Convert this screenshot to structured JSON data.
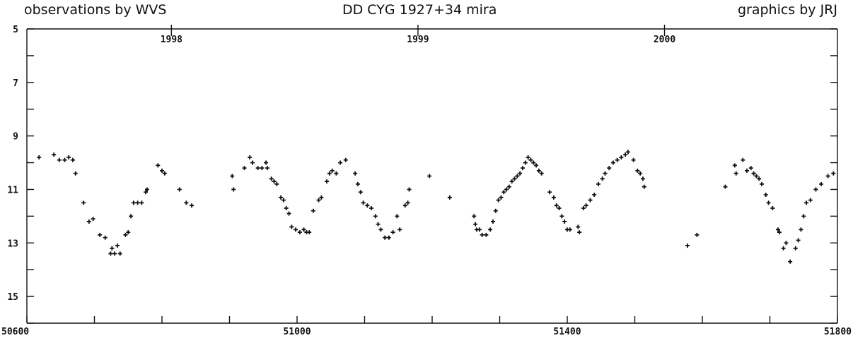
{
  "header": {
    "left": "observations by WVS",
    "center": "DD CYG  1927+34  mira",
    "right": "graphics by JRJ"
  },
  "chart_data": {
    "type": "scatter",
    "title": "DD CYG  1927+34  mira",
    "xlabel": "",
    "ylabel": "",
    "xlim": [
      50600,
      51800
    ],
    "ylim": [
      16,
      5
    ],
    "y_inverted": true,
    "x_ticks": [
      50600,
      50700,
      50800,
      50900,
      51000,
      51100,
      51200,
      51300,
      51400,
      51500,
      51600,
      51700,
      51800
    ],
    "x_tick_labels": [
      {
        "x": 50600,
        "label": "50600"
      },
      {
        "x": 51000,
        "label": "51000"
      },
      {
        "x": 51400,
        "label": "51400"
      },
      {
        "x": 51800,
        "label": "51800"
      }
    ],
    "y_ticks": [
      5,
      6,
      7,
      8,
      9,
      10,
      11,
      12,
      13,
      14,
      15,
      16
    ],
    "y_tick_labels": [
      {
        "y": 5,
        "label": "5"
      },
      {
        "y": 7,
        "label": "7"
      },
      {
        "y": 9,
        "label": "9"
      },
      {
        "y": 11,
        "label": "11"
      },
      {
        "y": 13,
        "label": "13"
      },
      {
        "y": 15,
        "label": "15"
      }
    ],
    "year_markers": [
      {
        "x": 50814,
        "label": "1998"
      },
      {
        "x": 51179,
        "label": "1999"
      },
      {
        "x": 51544,
        "label": "2000"
      }
    ],
    "marker": "+",
    "color": "#111111",
    "series": [
      {
        "points": [
          [
            50618,
            9.8
          ],
          [
            50640,
            9.7
          ],
          [
            50648,
            9.9
          ],
          [
            50656,
            9.9
          ],
          [
            50662,
            9.8
          ],
          [
            50668,
            9.9
          ],
          [
            50672,
            10.4
          ],
          [
            50684,
            11.5
          ],
          [
            50692,
            12.2
          ],
          [
            50698,
            12.1
          ],
          [
            50708,
            12.7
          ],
          [
            50716,
            12.8
          ],
          [
            50724,
            13.4
          ],
          [
            50726,
            13.2
          ],
          [
            50730,
            13.4
          ],
          [
            50734,
            13.1
          ],
          [
            50738,
            13.4
          ],
          [
            50746,
            12.7
          ],
          [
            50750,
            12.6
          ],
          [
            50754,
            12.0
          ],
          [
            50758,
            11.5
          ],
          [
            50764,
            11.5
          ],
          [
            50770,
            11.5
          ],
          [
            50776,
            11.1
          ],
          [
            50778,
            11.0
          ],
          [
            50794,
            10.1
          ],
          [
            50800,
            10.3
          ],
          [
            50804,
            10.4
          ],
          [
            50826,
            11.0
          ],
          [
            50836,
            11.5
          ],
          [
            50844,
            11.6
          ],
          [
            50904,
            10.5
          ],
          [
            50906,
            11.0
          ],
          [
            50922,
            10.2
          ],
          [
            50930,
            9.8
          ],
          [
            50934,
            10.0
          ],
          [
            50942,
            10.2
          ],
          [
            50948,
            10.2
          ],
          [
            50954,
            10.0
          ],
          [
            50956,
            10.2
          ],
          [
            50962,
            10.6
          ],
          [
            50966,
            10.7
          ],
          [
            50970,
            10.8
          ],
          [
            50976,
            11.3
          ],
          [
            50980,
            11.4
          ],
          [
            50984,
            11.7
          ],
          [
            50988,
            11.9
          ],
          [
            50992,
            12.4
          ],
          [
            50998,
            12.5
          ],
          [
            51004,
            12.6
          ],
          [
            51010,
            12.5
          ],
          [
            51014,
            12.6
          ],
          [
            51018,
            12.6
          ],
          [
            51024,
            11.8
          ],
          [
            51032,
            11.4
          ],
          [
            51036,
            11.3
          ],
          [
            51044,
            10.7
          ],
          [
            51048,
            10.4
          ],
          [
            51052,
            10.3
          ],
          [
            51058,
            10.4
          ],
          [
            51064,
            10.0
          ],
          [
            51072,
            9.9
          ],
          [
            51086,
            10.4
          ],
          [
            51090,
            10.8
          ],
          [
            51094,
            11.1
          ],
          [
            51098,
            11.5
          ],
          [
            51104,
            11.6
          ],
          [
            51110,
            11.7
          ],
          [
            51116,
            12.0
          ],
          [
            51120,
            12.3
          ],
          [
            51124,
            12.5
          ],
          [
            51130,
            12.8
          ],
          [
            51136,
            12.8
          ],
          [
            51142,
            12.6
          ],
          [
            51148,
            12.0
          ],
          [
            51152,
            12.5
          ],
          [
            51160,
            11.6
          ],
          [
            51164,
            11.5
          ],
          [
            51166,
            11.0
          ],
          [
            51196,
            10.5
          ],
          [
            51226,
            11.3
          ],
          [
            51262,
            12.0
          ],
          [
            51264,
            12.3
          ],
          [
            51266,
            12.5
          ],
          [
            51270,
            12.5
          ],
          [
            51274,
            12.7
          ],
          [
            51280,
            12.7
          ],
          [
            51286,
            12.5
          ],
          [
            51290,
            12.2
          ],
          [
            51294,
            11.8
          ],
          [
            51298,
            11.4
          ],
          [
            51302,
            11.3
          ],
          [
            51306,
            11.1
          ],
          [
            51310,
            11.0
          ],
          [
            51314,
            10.9
          ],
          [
            51318,
            10.7
          ],
          [
            51322,
            10.6
          ],
          [
            51326,
            10.5
          ],
          [
            51330,
            10.4
          ],
          [
            51334,
            10.2
          ],
          [
            51338,
            10.0
          ],
          [
            51342,
            9.8
          ],
          [
            51346,
            9.9
          ],
          [
            51350,
            10.0
          ],
          [
            51354,
            10.1
          ],
          [
            51358,
            10.3
          ],
          [
            51362,
            10.4
          ],
          [
            51374,
            11.1
          ],
          [
            51380,
            11.3
          ],
          [
            51384,
            11.6
          ],
          [
            51388,
            11.7
          ],
          [
            51392,
            12.0
          ],
          [
            51396,
            12.2
          ],
          [
            51400,
            12.5
          ],
          [
            51404,
            12.5
          ],
          [
            51416,
            12.4
          ],
          [
            51418,
            12.6
          ],
          [
            51424,
            11.7
          ],
          [
            51428,
            11.6
          ],
          [
            51434,
            11.4
          ],
          [
            51440,
            11.2
          ],
          [
            51446,
            10.8
          ],
          [
            51452,
            10.6
          ],
          [
            51456,
            10.4
          ],
          [
            51462,
            10.2
          ],
          [
            51468,
            10.0
          ],
          [
            51474,
            9.9
          ],
          [
            51480,
            9.8
          ],
          [
            51486,
            9.7
          ],
          [
            51490,
            9.6
          ],
          [
            51498,
            9.9
          ],
          [
            51504,
            10.3
          ],
          [
            51508,
            10.4
          ],
          [
            51512,
            10.6
          ],
          [
            51514,
            10.9
          ],
          [
            51578,
            13.1
          ],
          [
            51592,
            12.7
          ],
          [
            51634,
            10.9
          ],
          [
            51648,
            10.1
          ],
          [
            51650,
            10.4
          ],
          [
            51660,
            9.9
          ],
          [
            51666,
            10.3
          ],
          [
            51672,
            10.2
          ],
          [
            51676,
            10.4
          ],
          [
            51680,
            10.5
          ],
          [
            51684,
            10.6
          ],
          [
            51688,
            10.8
          ],
          [
            51694,
            11.2
          ],
          [
            51698,
            11.5
          ],
          [
            51704,
            11.7
          ],
          [
            51712,
            12.5
          ],
          [
            51714,
            12.6
          ],
          [
            51720,
            13.2
          ],
          [
            51724,
            13.0
          ],
          [
            51730,
            13.7
          ],
          [
            51738,
            13.2
          ],
          [
            51742,
            12.9
          ],
          [
            51746,
            12.5
          ],
          [
            51750,
            12.0
          ],
          [
            51754,
            11.5
          ],
          [
            51760,
            11.4
          ],
          [
            51768,
            11.0
          ],
          [
            51776,
            10.8
          ],
          [
            51786,
            10.5
          ],
          [
            51794,
            10.4
          ]
        ]
      }
    ]
  }
}
